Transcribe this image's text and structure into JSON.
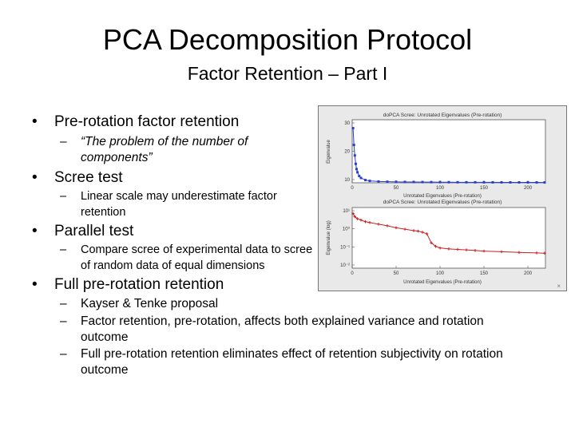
{
  "slide": {
    "title": "PCA Decomposition Protocol",
    "subtitle": "Factor Retention – Part I"
  },
  "bullets": [
    {
      "label": "Pre-rotation factor retention",
      "sub": [
        "“The problem of the number of components”"
      ]
    },
    {
      "label": "Scree test",
      "sub": [
        "Linear scale may underestimate factor retention"
      ]
    },
    {
      "label": "Parallel test",
      "sub": [
        "Compare scree of experimental data to scree of random data of equal dimensions"
      ]
    },
    {
      "label": "Full pre-rotation retention",
      "sub": [
        "Kayser & Tenke proposal",
        "Factor retention, pre-rotation, affects both explained variance and rotation outcome",
        "Full pre-rotation retention eliminates effect of retention subjectivity on rotation outcome"
      ]
    }
  ],
  "figure": {
    "colors": {
      "top_series": "#2a3fcf",
      "bottom_series": "#cc1f1f",
      "panel_bg": "#ffffff",
      "figure_bg": "#e9e9e9"
    },
    "scale_symbol": "×"
  },
  "chart_data": [
    {
      "type": "scatter",
      "title": "doPCA Scree: Unrotated Eigenvalues (Pre-rotation)",
      "xlabel": "Unrotated Eigenvalues (Pre-rotation)",
      "ylabel": "Eigenvalue",
      "x_ticks": [
        "0",
        "50",
        "100",
        "150",
        "200"
      ],
      "y_ticks": [
        "30",
        "20",
        "10"
      ],
      "xlim": [
        0,
        220
      ],
      "ylim": [
        0,
        30
      ],
      "y_scale": "linear",
      "series": [
        {
          "x": [
            1,
            2,
            3,
            4,
            5,
            6,
            8,
            10,
            15,
            20,
            30,
            40,
            50,
            60,
            70,
            80,
            90,
            100,
            110,
            120,
            130,
            140,
            150,
            160,
            170,
            180,
            190,
            200,
            210,
            219
          ],
          "y": [
            26,
            18,
            13,
            9,
            6.5,
            5,
            3.2,
            2.3,
            1.3,
            0.9,
            0.6,
            0.5,
            0.45,
            0.4,
            0.38,
            0.35,
            0.32,
            0.3,
            0.28,
            0.26,
            0.25,
            0.24,
            0.23,
            0.22,
            0.21,
            0.2,
            0.19,
            0.18,
            0.17,
            0.16
          ]
        }
      ]
    },
    {
      "type": "line",
      "title": "doPCA Scree: Unrotated Eigenvalues (Pre-rotation)",
      "xlabel": "Unrotated Eigenvalues (Pre-rotation)",
      "ylabel": "Eigenvalue (log)",
      "x_ticks": [
        "0",
        "50",
        "100",
        "150",
        "200"
      ],
      "y_ticks": [
        "10¹",
        "10⁰",
        "10⁻¹",
        "10⁻²"
      ],
      "xlim": [
        0,
        220
      ],
      "ylim": [
        0.01,
        10
      ],
      "y_scale": "log",
      "series": [
        {
          "x": [
            1,
            3,
            6,
            10,
            15,
            20,
            30,
            40,
            50,
            60,
            70,
            75,
            80,
            85,
            90,
            95,
            100,
            110,
            120,
            130,
            140,
            150,
            170,
            190,
            210,
            219
          ],
          "y": [
            5.0,
            3.5,
            2.8,
            2.4,
            2.0,
            1.8,
            1.5,
            1.25,
            1.0,
            0.85,
            0.72,
            0.68,
            0.6,
            0.5,
            0.18,
            0.12,
            0.1,
            0.09,
            0.085,
            0.08,
            0.075,
            0.07,
            0.065,
            0.06,
            0.057,
            0.055
          ]
        }
      ]
    }
  ]
}
